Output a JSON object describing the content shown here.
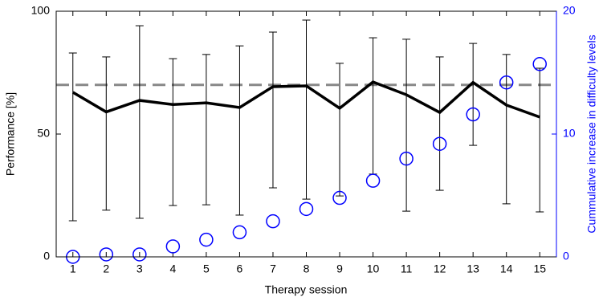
{
  "chart_data": {
    "type": "line",
    "x_label": "Therapy session",
    "y_label": "Performance [%]",
    "y2_label": "Cummulative increase in difficulty levels",
    "x": [
      1,
      2,
      3,
      4,
      5,
      6,
      7,
      8,
      9,
      10,
      11,
      12,
      13,
      14,
      15
    ],
    "xlim": [
      0.5,
      15.5
    ],
    "xticks": [
      1,
      2,
      3,
      4,
      5,
      6,
      7,
      8,
      9,
      10,
      11,
      12,
      13,
      14,
      15
    ],
    "ylim": [
      0,
      100
    ],
    "yticks": [
      0,
      50,
      100
    ],
    "y2lim": [
      0,
      20
    ],
    "y2ticks": [
      0,
      10,
      20
    ],
    "y2_color": "#0000ff",
    "reference_line": 70,
    "reference_color": "#888888",
    "series": [
      {
        "color": "#000000",
        "values": [
          67,
          59,
          63.7,
          62,
          62.7,
          60.8,
          69.3,
          69.6,
          60.5,
          71.2,
          66,
          58.8,
          71,
          61.8,
          56.9
        ],
        "upper": [
          83,
          81.4,
          94.1,
          80.7,
          82.4,
          85.9,
          91.5,
          96.4,
          78.8,
          89.2,
          88.6,
          81.4,
          86.9,
          82.4,
          76.8
        ],
        "lower": [
          14.7,
          19,
          15.7,
          20.9,
          21.2,
          17,
          28.1,
          23.5,
          24.8,
          33.7,
          18.6,
          27.1,
          45.4,
          21.6,
          18.3
        ]
      },
      {
        "color": "#0000ff",
        "axis": "y2",
        "marker": "circle",
        "values": [
          0,
          0.2,
          0.2,
          0.85,
          1.4,
          2,
          2.9,
          3.9,
          4.8,
          6.2,
          8,
          9.2,
          11.6,
          14.2,
          15.7
        ]
      }
    ]
  }
}
